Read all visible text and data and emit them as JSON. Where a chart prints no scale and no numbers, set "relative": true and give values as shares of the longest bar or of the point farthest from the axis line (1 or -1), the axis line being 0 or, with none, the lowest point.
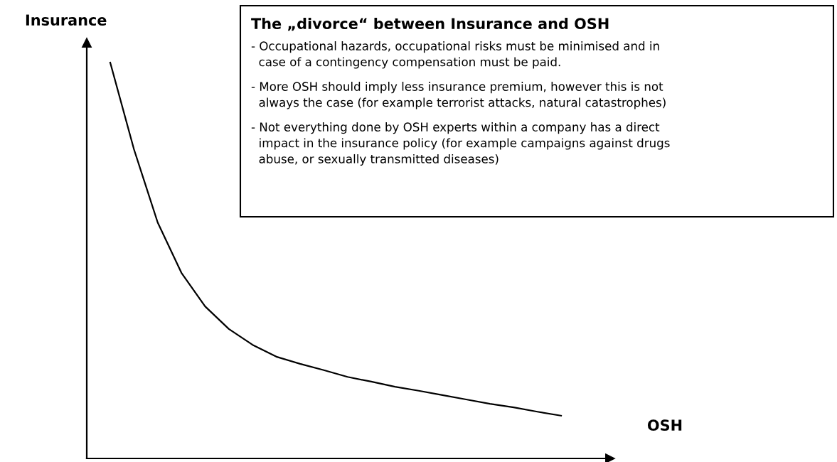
{
  "chart_data": {
    "type": "line",
    "relative": true,
    "title": "The „divorce“ between Insurance and OSH",
    "ylabel": "Insurance",
    "annotations": [
      "OSH",
      "- Occupational hazards, occupational risks must be minimised and in\n  case of a contingency compensation must be paid.",
      "- More OSH should imply less insurance premium, however this is not\n  always the case (for example terrorist attacks, natural catastrophes)",
      "- Not everything done by OSH experts within a company has a direct\n  impact in the insurance policy (for example campaigns against drugs\n  abuse, or sexually transmitted diseases)"
    ],
    "categories": [
      null,
      null,
      null,
      null,
      null,
      null,
      null,
      null,
      null,
      null,
      null,
      null,
      null,
      null,
      null,
      null,
      null,
      null,
      null,
      null
    ],
    "series": [
      {
        "color": "#000000",
        "values": [
          1.0,
          0.781,
          0.596,
          0.469,
          0.384,
          0.327,
          0.287,
          0.257,
          0.239,
          0.223,
          0.206,
          0.194,
          0.181,
          0.171,
          0.16,
          0.149,
          0.138,
          0.129,
          0.118,
          0.108
        ]
      }
    ],
    "marker": "none",
    "line_style": "solid"
  }
}
